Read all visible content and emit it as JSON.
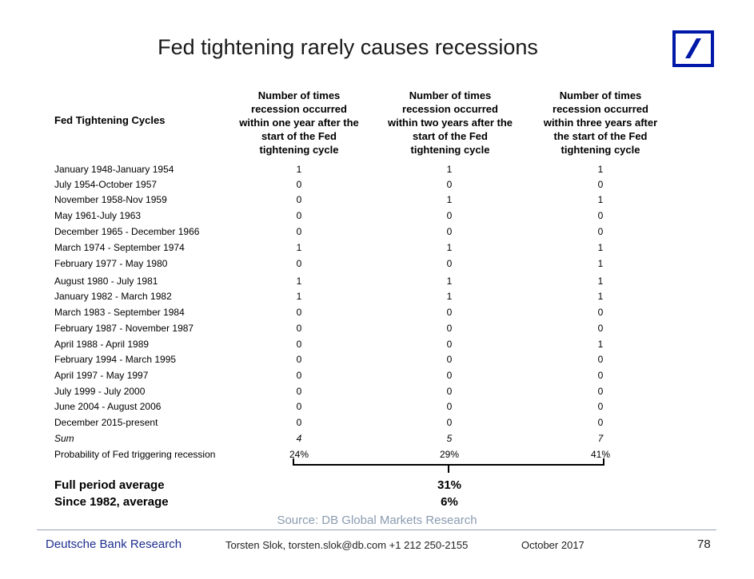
{
  "title": "Fed tightening rarely causes recessions",
  "headers": {
    "label": "Fed Tightening Cycles",
    "col1": [
      "Number of times",
      "recession occurred",
      "within one year after the",
      "start of the Fed",
      "tightening cycle"
    ],
    "col2": [
      "Number of times",
      "recession occurred",
      "within two years after the",
      "start of the Fed",
      "tightening cycle"
    ],
    "col3": [
      "Number of times",
      "recession occurred",
      "within three years after",
      "the start of the Fed",
      "tightening cycle"
    ]
  },
  "rows": [
    {
      "label": "January 1948-January 1954",
      "v1": "1",
      "v2": "1",
      "v3": "1"
    },
    {
      "label": "July 1954-October 1957",
      "v1": "0",
      "v2": "0",
      "v3": "0"
    },
    {
      "label": "November 1958-Nov 1959",
      "v1": "0",
      "v2": "1",
      "v3": "1"
    },
    {
      "label": "May 1961-July 1963",
      "v1": "0",
      "v2": "0",
      "v3": "0"
    },
    {
      "label": "December 1965 - December 1966",
      "v1": "0",
      "v2": "0",
      "v3": "0"
    },
    {
      "label": "March 1974 - September 1974",
      "v1": "1",
      "v2": "1",
      "v3": "1"
    },
    {
      "label": "February 1977 - May 1980",
      "v1": "0",
      "v2": "0",
      "v3": "1"
    },
    {
      "label": "August 1980 - July 1981",
      "v1": "1",
      "v2": "1",
      "v3": "1"
    },
    {
      "label": "January 1982 - March 1982",
      "v1": "1",
      "v2": "1",
      "v3": "1"
    },
    {
      "label": "March 1983 - September 1984",
      "v1": "0",
      "v2": "0",
      "v3": "0"
    },
    {
      "label": "February 1987 - November 1987",
      "v1": "0",
      "v2": "0",
      "v3": "0"
    },
    {
      "label": "April 1988 - April 1989",
      "v1": "0",
      "v2": "0",
      "v3": "1"
    },
    {
      "label": "February 1994 - March 1995",
      "v1": "0",
      "v2": "0",
      "v3": "0"
    },
    {
      "label": "April 1997 - May 1997",
      "v1": "0",
      "v2": "0",
      "v3": "0"
    },
    {
      "label": "July 1999 - July 2000",
      "v1": "0",
      "v2": "0",
      "v3": "0"
    },
    {
      "label": "June 2004 - August 2006",
      "v1": "0",
      "v2": "0",
      "v3": "0"
    },
    {
      "label": "December 2015-present",
      "v1": "0",
      "v2": "0",
      "v3": "0"
    }
  ],
  "sum_row": {
    "label": "Sum",
    "v1": "4",
    "v2": "5",
    "v3": "7"
  },
  "prob_row": {
    "label": "Probability of Fed triggering recession",
    "v1": "24%",
    "v2": "29%",
    "v3": "41%"
  },
  "summary": {
    "full_label": "Full period average",
    "full_value": "31%",
    "since_label": "Since 1982, average",
    "since_value": "6%"
  },
  "source": "Source: DB Global Markets Research",
  "footer": {
    "brand": "Deutsche Bank Research",
    "author": "Torsten Slok, torsten.slok@db.com  +1 212 250-2155",
    "date": "October  2017",
    "page": "78"
  },
  "colors": {
    "brand_blue": "#1f2f8f",
    "logo_blue": "#0018a8",
    "source_gray": "#8a9bb0"
  }
}
